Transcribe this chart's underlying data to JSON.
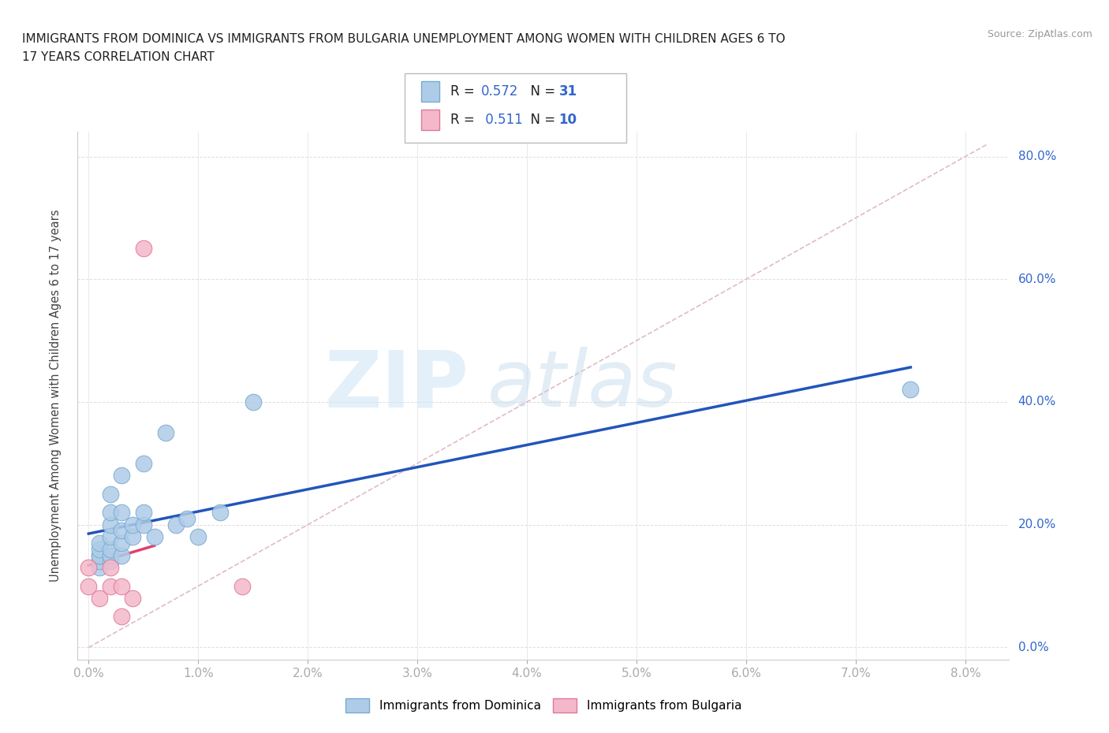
{
  "title_line1": "IMMIGRANTS FROM DOMINICA VS IMMIGRANTS FROM BULGARIA UNEMPLOYMENT AMONG WOMEN WITH CHILDREN AGES 6 TO",
  "title_line2": "17 YEARS CORRELATION CHART",
  "source": "Source: ZipAtlas.com",
  "xlim": [
    -0.001,
    0.084
  ],
  "ylim": [
    -0.02,
    0.84
  ],
  "x_tick_positions": [
    0.0,
    0.01,
    0.02,
    0.03,
    0.04,
    0.05,
    0.06,
    0.07,
    0.08
  ],
  "x_tick_labels": [
    "0.0%",
    "1.0%",
    "2.0%",
    "3.0%",
    "4.0%",
    "5.0%",
    "6.0%",
    "7.0%",
    "8.0%"
  ],
  "y_tick_left": [
    0.0,
    0.2,
    0.4,
    0.6,
    0.8
  ],
  "y_tick_labels_left": [
    "",
    "",
    "",
    "",
    ""
  ],
  "y_tick_right": [
    0.0,
    0.2,
    0.4,
    0.6,
    0.8
  ],
  "y_tick_labels_right": [
    "0.0%",
    "20.0%",
    "40.0%",
    "60.0%",
    "80.0%"
  ],
  "dominica_x": [
    0.001,
    0.001,
    0.001,
    0.001,
    0.001,
    0.001,
    0.002,
    0.002,
    0.002,
    0.002,
    0.002,
    0.002,
    0.002,
    0.003,
    0.003,
    0.003,
    0.003,
    0.003,
    0.004,
    0.004,
    0.005,
    0.005,
    0.005,
    0.006,
    0.007,
    0.008,
    0.009,
    0.01,
    0.012,
    0.015,
    0.075
  ],
  "dominica_y": [
    0.13,
    0.14,
    0.15,
    0.15,
    0.16,
    0.17,
    0.14,
    0.15,
    0.16,
    0.18,
    0.2,
    0.22,
    0.25,
    0.15,
    0.17,
    0.19,
    0.22,
    0.28,
    0.18,
    0.2,
    0.2,
    0.22,
    0.3,
    0.18,
    0.35,
    0.2,
    0.21,
    0.18,
    0.22,
    0.4,
    0.42
  ],
  "bulgaria_x": [
    0.0,
    0.0,
    0.001,
    0.002,
    0.002,
    0.003,
    0.003,
    0.004,
    0.005,
    0.014
  ],
  "bulgaria_y": [
    0.1,
    0.13,
    0.08,
    0.1,
    0.13,
    0.05,
    0.1,
    0.08,
    0.65,
    0.1
  ],
  "dominica_color": "#aecce8",
  "dominica_edge": "#7aaacf",
  "bulgaria_color": "#f4b8ca",
  "bulgaria_edge": "#e07898",
  "blue_line_color": "#2255bb",
  "pink_line_color": "#e04070",
  "diag_line_color": "#d8aabb",
  "diag_line_style": "--",
  "R_dominica": "0.572",
  "N_dominica": "31",
  "R_bulgaria": "0.511",
  "N_bulgaria": "10",
  "watermark_zip": "ZIP",
  "watermark_atlas": "atlas",
  "ylabel": "Unemployment Among Women with Children Ages 6 to 17 years",
  "background_color": "#ffffff",
  "grid_color": "#e0e0e0",
  "legend_bottom_labels": [
    "Immigrants from Dominica",
    "Immigrants from Bulgaria"
  ]
}
